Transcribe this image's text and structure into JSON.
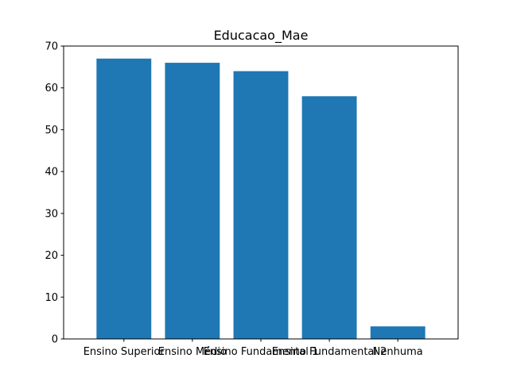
{
  "chart_data": {
    "type": "bar",
    "title": "Educacao_Mae",
    "xlabel": "",
    "ylabel": "",
    "categories": [
      "Ensino Superior",
      "Ensino Médio",
      "Ensino Fundamental 1",
      "Ensino Fundamental 2",
      "Nenhuma"
    ],
    "values": [
      67,
      66,
      64,
      58,
      3
    ],
    "ylim": [
      0,
      70
    ],
    "yticks": [
      0,
      10,
      20,
      30,
      40,
      50,
      60,
      70
    ],
    "bar_color": "#1f77b4",
    "grid": false,
    "legend": "none"
  }
}
